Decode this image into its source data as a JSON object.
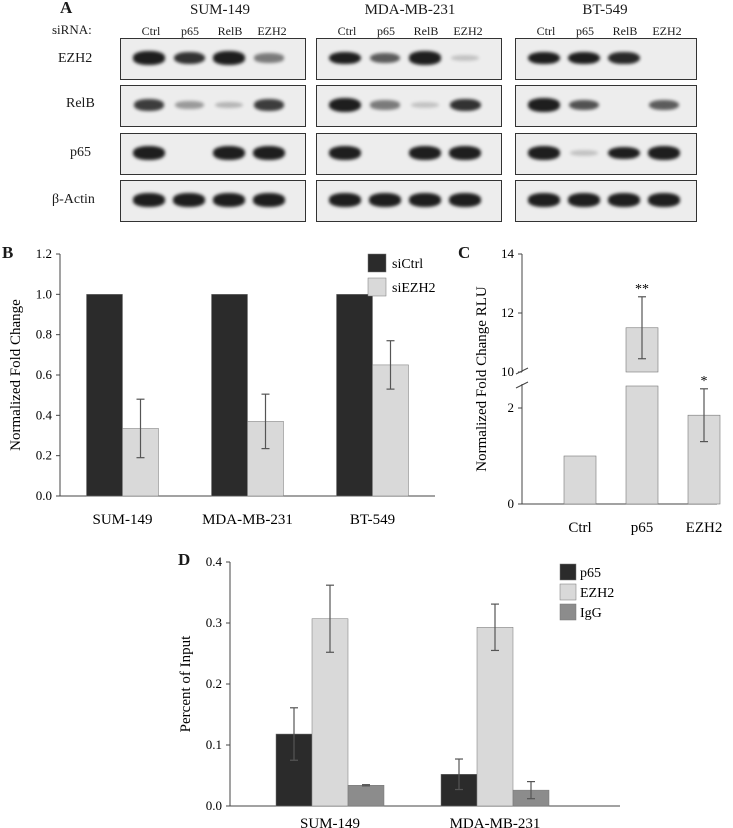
{
  "panelA": {
    "letter": "A",
    "sirna_label": "siRNA:",
    "lanes": [
      "Ctrl",
      "p65",
      "RelB",
      "EZH2"
    ],
    "cell_lines": [
      "SUM-149",
      "MDA-MB-231",
      "BT-549"
    ],
    "rows": [
      "EZH2",
      "RelB",
      "p65",
      "β-Actin"
    ],
    "band_intensity": [
      [
        [
          0.9,
          0.75,
          0.9,
          0.4
        ],
        [
          0.7,
          0.25,
          0.12,
          0.7
        ],
        [
          0.95,
          0.0,
          0.95,
          0.95
        ],
        [
          0.9,
          0.9,
          0.9,
          0.9
        ]
      ],
      [
        [
          0.85,
          0.55,
          0.9,
          0.05
        ],
        [
          1.0,
          0.4,
          0.05,
          0.75
        ],
        [
          0.95,
          0.0,
          0.95,
          0.95
        ],
        [
          0.9,
          0.9,
          0.9,
          0.9
        ]
      ],
      [
        [
          0.85,
          0.85,
          0.8,
          0.0
        ],
        [
          0.95,
          0.6,
          0.0,
          0.55
        ],
        [
          0.95,
          0.05,
          0.85,
          0.95
        ],
        [
          0.9,
          0.9,
          0.9,
          0.9
        ]
      ]
    ]
  },
  "chart_data": [
    {
      "panel": "B",
      "type": "bar",
      "categories": [
        "SUM-149",
        "MDA-MB-231",
        "BT-549"
      ],
      "series": [
        {
          "name": "siCtrl",
          "values": [
            1.0,
            1.0,
            1.0
          ],
          "errors": [
            0,
            0,
            0
          ],
          "color": "#2b2b2b"
        },
        {
          "name": "siEZH2",
          "values": [
            0.335,
            0.37,
            0.65
          ],
          "errors": [
            0.145,
            0.135,
            0.12
          ],
          "color": "#d9d9d9"
        }
      ],
      "ylabel": "Normalized Fold Change",
      "ylim": [
        0,
        1.2
      ],
      "yticks": [
        "0.0",
        "0.2",
        "0.4",
        "0.6",
        "0.8",
        "1.0",
        "1.2"
      ],
      "legend": "top-right"
    },
    {
      "panel": "C",
      "type": "bar",
      "categories": [
        "Ctrl",
        "p65",
        "EZH2"
      ],
      "values": [
        1.0,
        11.5,
        1.85
      ],
      "errors": [
        0,
        1.05,
        0.55
      ],
      "significance": [
        "",
        "**",
        "*"
      ],
      "color": "#d9d9d9",
      "ylabel": "Normalized Fold Change RLU",
      "axis_break": [
        2.5,
        10
      ],
      "yticks": [
        "0",
        "2",
        "10",
        "12",
        "14"
      ],
      "ylim": [
        0,
        14
      ]
    },
    {
      "panel": "D",
      "type": "bar",
      "categories": [
        "SUM-149",
        "MDA-MB-231"
      ],
      "series": [
        {
          "name": "p65",
          "values": [
            0.118,
            0.052
          ],
          "errors": [
            0.043,
            0.025
          ],
          "color": "#2b2b2b"
        },
        {
          "name": "EZH2",
          "values": [
            0.307,
            0.293
          ],
          "errors": [
            0.055,
            0.038
          ],
          "color": "#d9d9d9"
        },
        {
          "name": "IgG",
          "values": [
            0.034,
            0.026
          ],
          "errors": [
            0.001,
            0.014
          ],
          "color": "#8c8c8c"
        }
      ],
      "ylabel": "Percent of Input",
      "ylim": [
        0,
        0.4
      ],
      "yticks": [
        "0.0",
        "0.1",
        "0.2",
        "0.3",
        "0.4"
      ],
      "legend": "top-right"
    }
  ]
}
